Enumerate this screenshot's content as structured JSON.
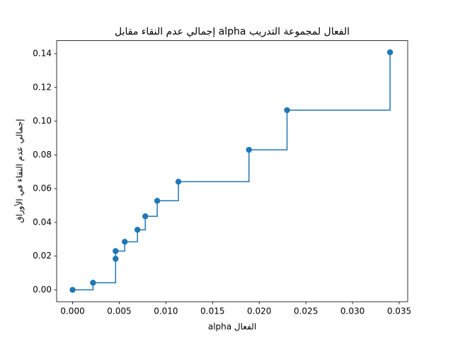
{
  "chart_data": {
    "type": "line",
    "drawstyle": "steps-post",
    "marker": "o",
    "title": "إجمالي عدم النقاء مقابل alpha الفعال لمجموعة التدريب",
    "xlabel": "alpha الفعال",
    "ylabel": "إجمالي عدم النقاء في الأوراق",
    "color": "#1f77b4",
    "x": [
      0,
      0.00219,
      0.00461,
      0.00461,
      0.00559,
      0.00695,
      0.00779,
      0.00907,
      0.01134,
      0.0189,
      0.02298,
      0.03402
    ],
    "values": [
      0,
      0.0042,
      0.0184,
      0.023,
      0.0285,
      0.0356,
      0.0436,
      0.0528,
      0.0641,
      0.083,
      0.1065,
      0.1408
    ],
    "xlim": [
      -0.00171,
      0.03591
    ],
    "ylim": [
      -0.00703,
      0.1477
    ],
    "xticks": [
      {
        "value": 0,
        "label": "0.000"
      },
      {
        "value": 0.005,
        "label": "0.005"
      },
      {
        "value": 0.01,
        "label": "0.010"
      },
      {
        "value": 0.015,
        "label": "0.015"
      },
      {
        "value": 0.02,
        "label": "0.020"
      },
      {
        "value": 0.025,
        "label": "0.025"
      },
      {
        "value": 0.03,
        "label": "0.030"
      },
      {
        "value": 0.035,
        "label": "0.035"
      }
    ],
    "yticks": [
      {
        "value": 0,
        "label": "0.00"
      },
      {
        "value": 0.02,
        "label": "0.02"
      },
      {
        "value": 0.04,
        "label": "0.04"
      },
      {
        "value": 0.06,
        "label": "0.06"
      },
      {
        "value": 0.08,
        "label": "0.08"
      },
      {
        "value": 0.1,
        "label": "0.10"
      },
      {
        "value": 0.12,
        "label": "0.12"
      },
      {
        "value": 0.14,
        "label": "0.14"
      }
    ],
    "grid": false
  }
}
